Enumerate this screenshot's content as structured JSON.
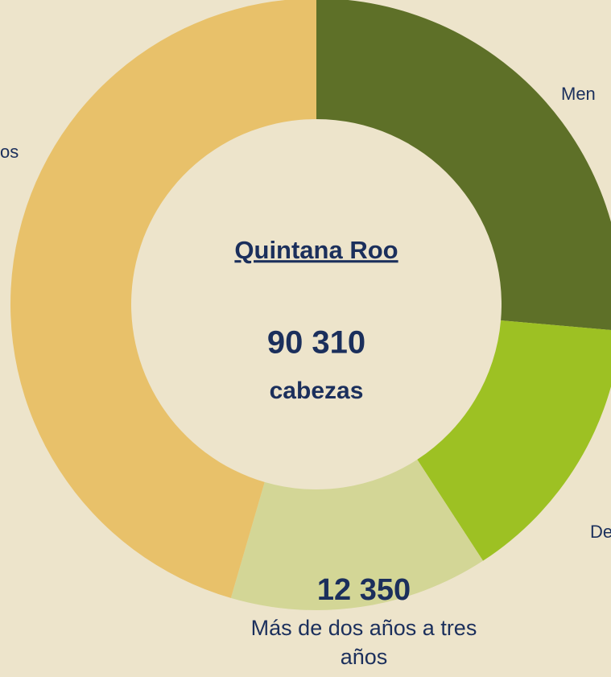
{
  "chart_data": {
    "type": "donut",
    "title": "Quintana Roo",
    "total_label": "90 310",
    "unit_label": "cabezas",
    "categories": [
      "Men",
      "De",
      "Más de dos años a tres años",
      "os"
    ],
    "values": [
      23830,
      13045,
      12350,
      41085
    ],
    "value_labels": [
      null,
      null,
      "12 350",
      null
    ],
    "colors": [
      "#5e7028",
      "#9dc123",
      "#d3d696",
      "#e8c16a"
    ]
  }
}
